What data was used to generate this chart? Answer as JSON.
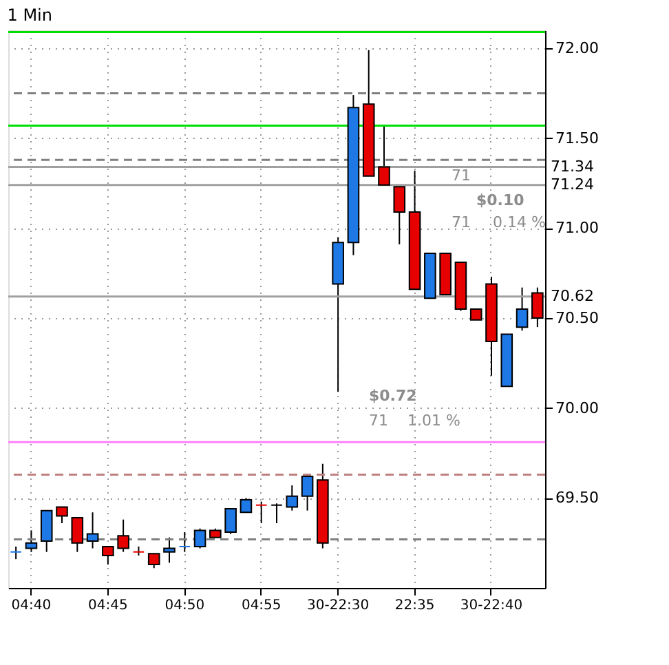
{
  "chart_data": {
    "type": "candlestick",
    "title": "1 Min",
    "categories": [
      null,
      "04:40",
      null,
      null,
      null,
      null,
      "04:45",
      null,
      null,
      null,
      null,
      "04:50",
      null,
      null,
      null,
      null,
      "04:55",
      null,
      null,
      null,
      null,
      "30-22:30",
      null,
      null,
      null,
      null,
      "22:35",
      null,
      null,
      null,
      null,
      "30-22:40",
      null,
      null,
      null
    ],
    "ohlc": [
      [
        69.2,
        69.23,
        69.16,
        69.2
      ],
      [
        69.22,
        69.32,
        69.2,
        69.25
      ],
      [
        69.26,
        69.43,
        69.2,
        69.43
      ],
      [
        69.45,
        69.45,
        69.36,
        69.4
      ],
      [
        69.39,
        69.39,
        69.2,
        69.25
      ],
      [
        69.26,
        69.42,
        69.22,
        69.3
      ],
      [
        69.23,
        69.23,
        69.13,
        69.18
      ],
      [
        69.29,
        69.38,
        69.2,
        69.22
      ],
      [
        69.2,
        69.23,
        69.18,
        69.2
      ],
      [
        69.19,
        69.19,
        69.11,
        69.13
      ],
      [
        69.2,
        69.28,
        69.14,
        69.22
      ],
      [
        69.23,
        69.31,
        69.2,
        69.23
      ],
      [
        69.23,
        69.33,
        69.22,
        69.32
      ],
      [
        69.32,
        69.33,
        69.28,
        69.28
      ],
      [
        69.31,
        69.44,
        69.3,
        69.44
      ],
      [
        69.42,
        69.5,
        69.42,
        69.49
      ],
      [
        69.46,
        69.48,
        69.36,
        69.46
      ],
      [
        69.46,
        69.47,
        69.36,
        69.46
      ],
      [
        69.45,
        69.57,
        69.43,
        69.51
      ],
      [
        69.51,
        69.62,
        69.43,
        69.62
      ],
      [
        69.6,
        69.69,
        69.22,
        69.25
      ],
      [
        70.69,
        70.95,
        70.09,
        70.92
      ],
      [
        70.92,
        71.74,
        70.85,
        71.67
      ],
      [
        71.69,
        71.99,
        71.29,
        71.29
      ],
      [
        71.34,
        71.57,
        71.24,
        71.24
      ],
      [
        71.23,
        71.23,
        70.91,
        71.09
      ],
      [
        71.09,
        71.32,
        70.66,
        70.66
      ],
      [
        70.61,
        70.86,
        70.61,
        70.86
      ],
      [
        70.86,
        70.86,
        70.63,
        70.63
      ],
      [
        70.81,
        70.81,
        70.54,
        70.55
      ],
      [
        70.55,
        70.55,
        70.49,
        70.49
      ],
      [
        70.69,
        70.73,
        70.18,
        70.37
      ],
      [
        70.12,
        70.41,
        70.12,
        70.41
      ],
      [
        70.45,
        70.67,
        70.43,
        70.55
      ],
      [
        70.64,
        70.67,
        70.45,
        70.5
      ]
    ],
    "colors": [
      "#1e78e6",
      "#1e78e6",
      "#1e78e6",
      "#e60000",
      "#e60000",
      "#1e78e6",
      "#e60000",
      "#e60000",
      "#e60000",
      "#e60000",
      "#1e78e6",
      "#1e78e6",
      "#1e78e6",
      "#e60000",
      "#1e78e6",
      "#1e78e6",
      "#e60000",
      "#000000",
      "#1e78e6",
      "#1e78e6",
      "#e60000",
      "#1e78e6",
      "#1e78e6",
      "#e60000",
      "#e60000",
      "#e60000",
      "#e60000",
      "#1e78e6",
      "#e60000",
      "#e60000",
      "#e60000",
      "#e60000",
      "#1e78e6",
      "#1e78e6",
      "#e60000"
    ],
    "ylim": [
      69.0,
      72.1
    ],
    "yticks": [
      {
        "value": 69.5,
        "label": "69.50"
      },
      {
        "value": 70.0,
        "label": "70.00"
      },
      {
        "value": 70.5,
        "label": "70.50"
      },
      {
        "value": 71.0,
        "label": "71.00"
      },
      {
        "value": 71.5,
        "label": "71.50"
      },
      {
        "value": 72.0,
        "label": "72.00"
      }
    ],
    "grid": true,
    "ref_lines": [
      {
        "axis": "y",
        "value": 72.09,
        "color": "#00e000",
        "line_style": "solid"
      },
      {
        "axis": "y",
        "value": 71.75,
        "color": "#808080",
        "line_style": "dashed"
      },
      {
        "axis": "y",
        "value": 71.57,
        "color": "#00e000",
        "line_style": "solid"
      },
      {
        "axis": "y",
        "value": 71.38,
        "color": "#808080",
        "line_style": "dashed"
      },
      {
        "axis": "y",
        "value": 71.34,
        "label": "71.34",
        "color": "#a0a0a0",
        "line_style": "solid"
      },
      {
        "axis": "y",
        "value": 71.24,
        "label": "71.24",
        "color": "#a0a0a0",
        "line_style": "solid"
      },
      {
        "axis": "y",
        "value": 70.62,
        "label": "70.62",
        "color": "#a0a0a0",
        "line_style": "solid"
      },
      {
        "axis": "y",
        "value": 69.81,
        "color": "#ff80ff",
        "line_style": "solid"
      },
      {
        "axis": "y",
        "value": 69.63,
        "color": "#c08080",
        "line_style": "dashed"
      },
      {
        "axis": "y",
        "value": 69.27,
        "color": "#808080",
        "line_style": "dashed"
      }
    ],
    "annotations": [
      "71",
      "$0.10",
      "71",
      "0.14 %",
      "$0.72",
      "71",
      "1.01 %"
    ]
  }
}
